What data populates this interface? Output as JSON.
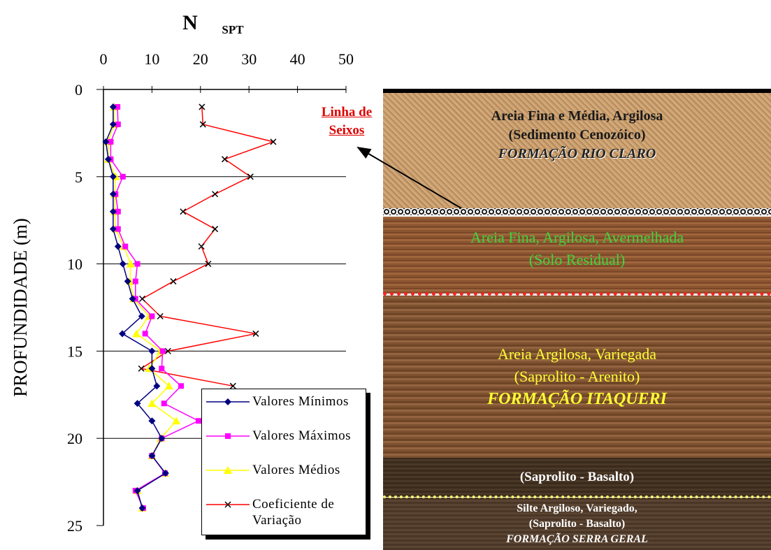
{
  "chart_data": {
    "type": "line",
    "title": "N",
    "title_sub": "SPT",
    "y_label": "PROFUNDIDADE (m)",
    "depths": [
      1,
      2,
      3,
      4,
      5,
      6,
      7,
      8,
      9,
      10,
      11,
      12,
      13,
      14,
      15,
      16,
      17,
      18,
      19,
      20,
      21,
      22,
      23,
      24
    ],
    "series": [
      {
        "name": "Valores Mínimos",
        "color": "#000080",
        "marker": "diamond",
        "values": [
          2,
          2,
          0.5,
          1,
          2,
          2,
          2,
          2,
          3,
          4,
          5,
          6,
          7.9,
          3.9,
          10,
          10,
          11,
          7,
          10,
          12,
          10,
          12.8,
          7,
          8
        ]
      },
      {
        "name": "Valores Máximos",
        "color": "#ff00ff",
        "marker": "square",
        "values": [
          2.9,
          3,
          1.5,
          1.5,
          4,
          2.5,
          3,
          3,
          4.5,
          7,
          6.6,
          6.6,
          10,
          8.6,
          12.2,
          12,
          16,
          12.5,
          19.6,
          12,
          10,
          12.7,
          6.6,
          8.2
        ]
      },
      {
        "name": "Valores Médios",
        "color": "#ffff00",
        "marker": "triangle",
        "values": [
          2.2,
          2.2,
          1,
          1,
          2.5,
          2.3,
          2.3,
          2.5,
          4.2,
          5.6,
          5.5,
          6.2,
          9.4,
          6.8,
          11.8,
          9.4,
          13.5,
          10,
          15,
          11.8,
          10,
          12.7,
          7,
          8
        ]
      },
      {
        "name": "Coeficiente de Variação",
        "color": "#ff0000",
        "marker": "x",
        "values": [
          20.3,
          20.5,
          35,
          25,
          30.3,
          23,
          16.4,
          23,
          20.2,
          21.6,
          14.4,
          8,
          11.7,
          31.4,
          13.3,
          7.8,
          26.7,
          null,
          null,
          null,
          null,
          null,
          null,
          null
        ]
      }
    ],
    "xlim": [
      0,
      50
    ],
    "xticks": [
      0,
      10,
      20,
      30,
      40,
      50
    ],
    "ylim": [
      0,
      25
    ],
    "yticks": [
      0,
      5,
      10,
      15,
      20,
      25
    ],
    "grid": true,
    "annotation": "Linha de Seixos"
  },
  "profile": {
    "layers": [
      {
        "lines": [
          "Areia Fina e Média, Argilosa",
          "(Sedimento Cenozóico)",
          "FORMAÇÃO RIO CLARO"
        ]
      },
      {
        "lines": [
          "Areia Fina, Argilosa, Avermelhada",
          "(Solo Residual)"
        ]
      },
      {
        "lines": [
          "Areia Argilosa, Variegada",
          "(Saprolito - Arenito)",
          "FORMAÇÃO ITAQUERI"
        ]
      },
      {
        "lines": [
          "(Saprolito - Basalto)"
        ]
      },
      {
        "lines": [
          "Silte Argiloso, Variegado,",
          "(Saprolito - Basalto)",
          "FORMAÇÃO SERRA GERAL"
        ]
      }
    ]
  }
}
